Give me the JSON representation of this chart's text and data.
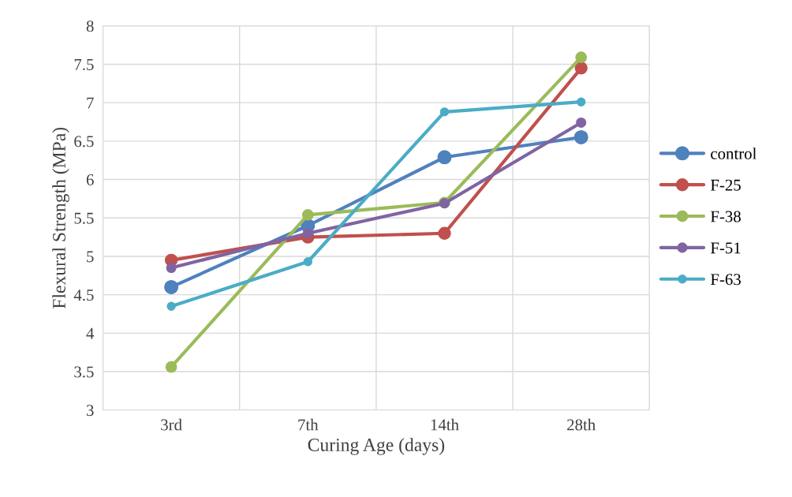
{
  "chart_data": {
    "type": "line",
    "xlabel": "Curing Age (days)",
    "ylabel": "Flexural Strength (MPa)",
    "categories": [
      "3rd",
      "7th",
      "14th",
      "28th"
    ],
    "series": [
      {
        "name": "control",
        "color": "#4f81bd",
        "values": [
          4.6,
          5.4,
          6.29,
          6.55
        ]
      },
      {
        "name": "F-25",
        "color": "#c0504d",
        "values": [
          4.95,
          5.25,
          5.3,
          7.45
        ]
      },
      {
        "name": "F-38",
        "color": "#9bbb59",
        "values": [
          3.56,
          5.54,
          5.7,
          7.59
        ]
      },
      {
        "name": "F-51",
        "color": "#8064a2",
        "values": [
          4.85,
          5.3,
          5.69,
          6.74
        ]
      },
      {
        "name": "F-63",
        "color": "#4bacc6",
        "values": [
          4.35,
          4.93,
          6.88,
          7.01
        ]
      }
    ],
    "ylim": [
      3,
      8
    ],
    "yticks": [
      3,
      3.5,
      4,
      4.5,
      5,
      5.5,
      6,
      6.5,
      7,
      7.5,
      8
    ],
    "grid": true,
    "legend": "right",
    "marker": "circle",
    "line_style": "solid"
  }
}
